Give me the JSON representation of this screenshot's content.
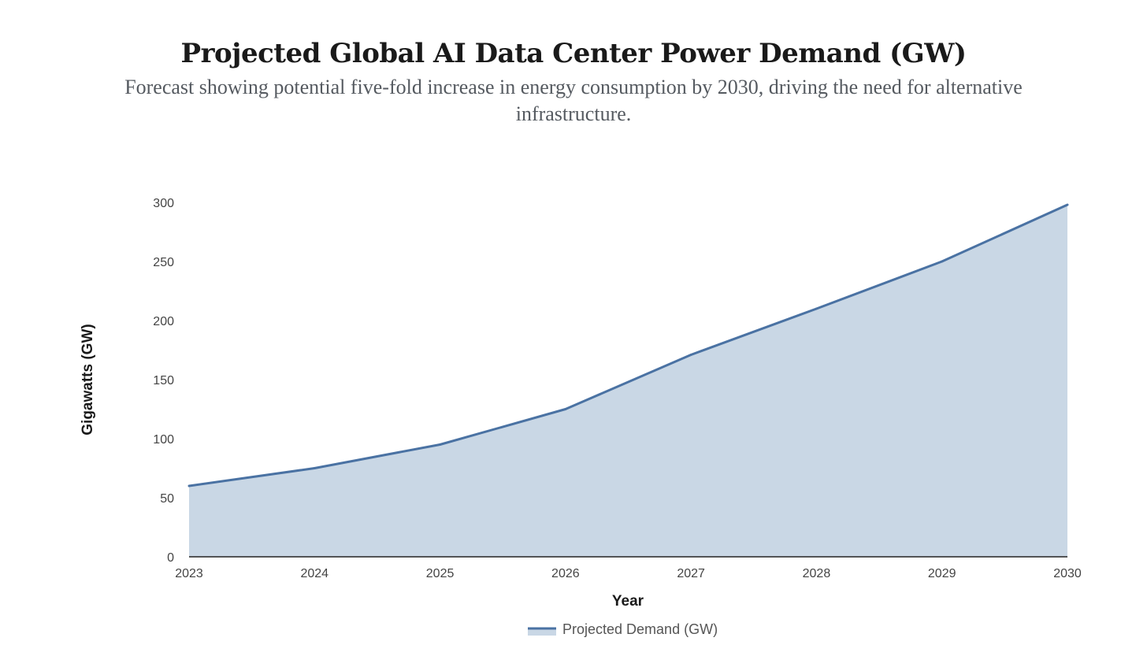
{
  "header": {
    "title": "Projected Global AI Data Center Power Demand (GW)",
    "subtitle": "Forecast showing potential five-fold increase in energy consumption by 2030, driving the need for alternative infrastructure."
  },
  "colors": {
    "line": "#4a72a3",
    "fill": "#c9d7e5",
    "axis": "#222222"
  },
  "chart_data": {
    "type": "area",
    "title": "Projected Global AI Data Center Power Demand (GW)",
    "subtitle": "Forecast showing potential five-fold increase in energy consumption by 2030, driving the need for alternative infrastructure.",
    "xlabel": "Year",
    "ylabel": "Gigawatts (GW)",
    "categories": [
      "2023",
      "2024",
      "2025",
      "2026",
      "2027",
      "2028",
      "2029",
      "2030"
    ],
    "series": [
      {
        "name": "Projected Demand (GW)",
        "values": [
          60,
          75,
          95,
          125,
          171,
          210,
          250,
          298
        ]
      }
    ],
    "ylim": [
      0,
      300
    ],
    "yticks": [
      0,
      50,
      100,
      150,
      200,
      250,
      300
    ],
    "grid": false,
    "legend": "bottom-center"
  }
}
